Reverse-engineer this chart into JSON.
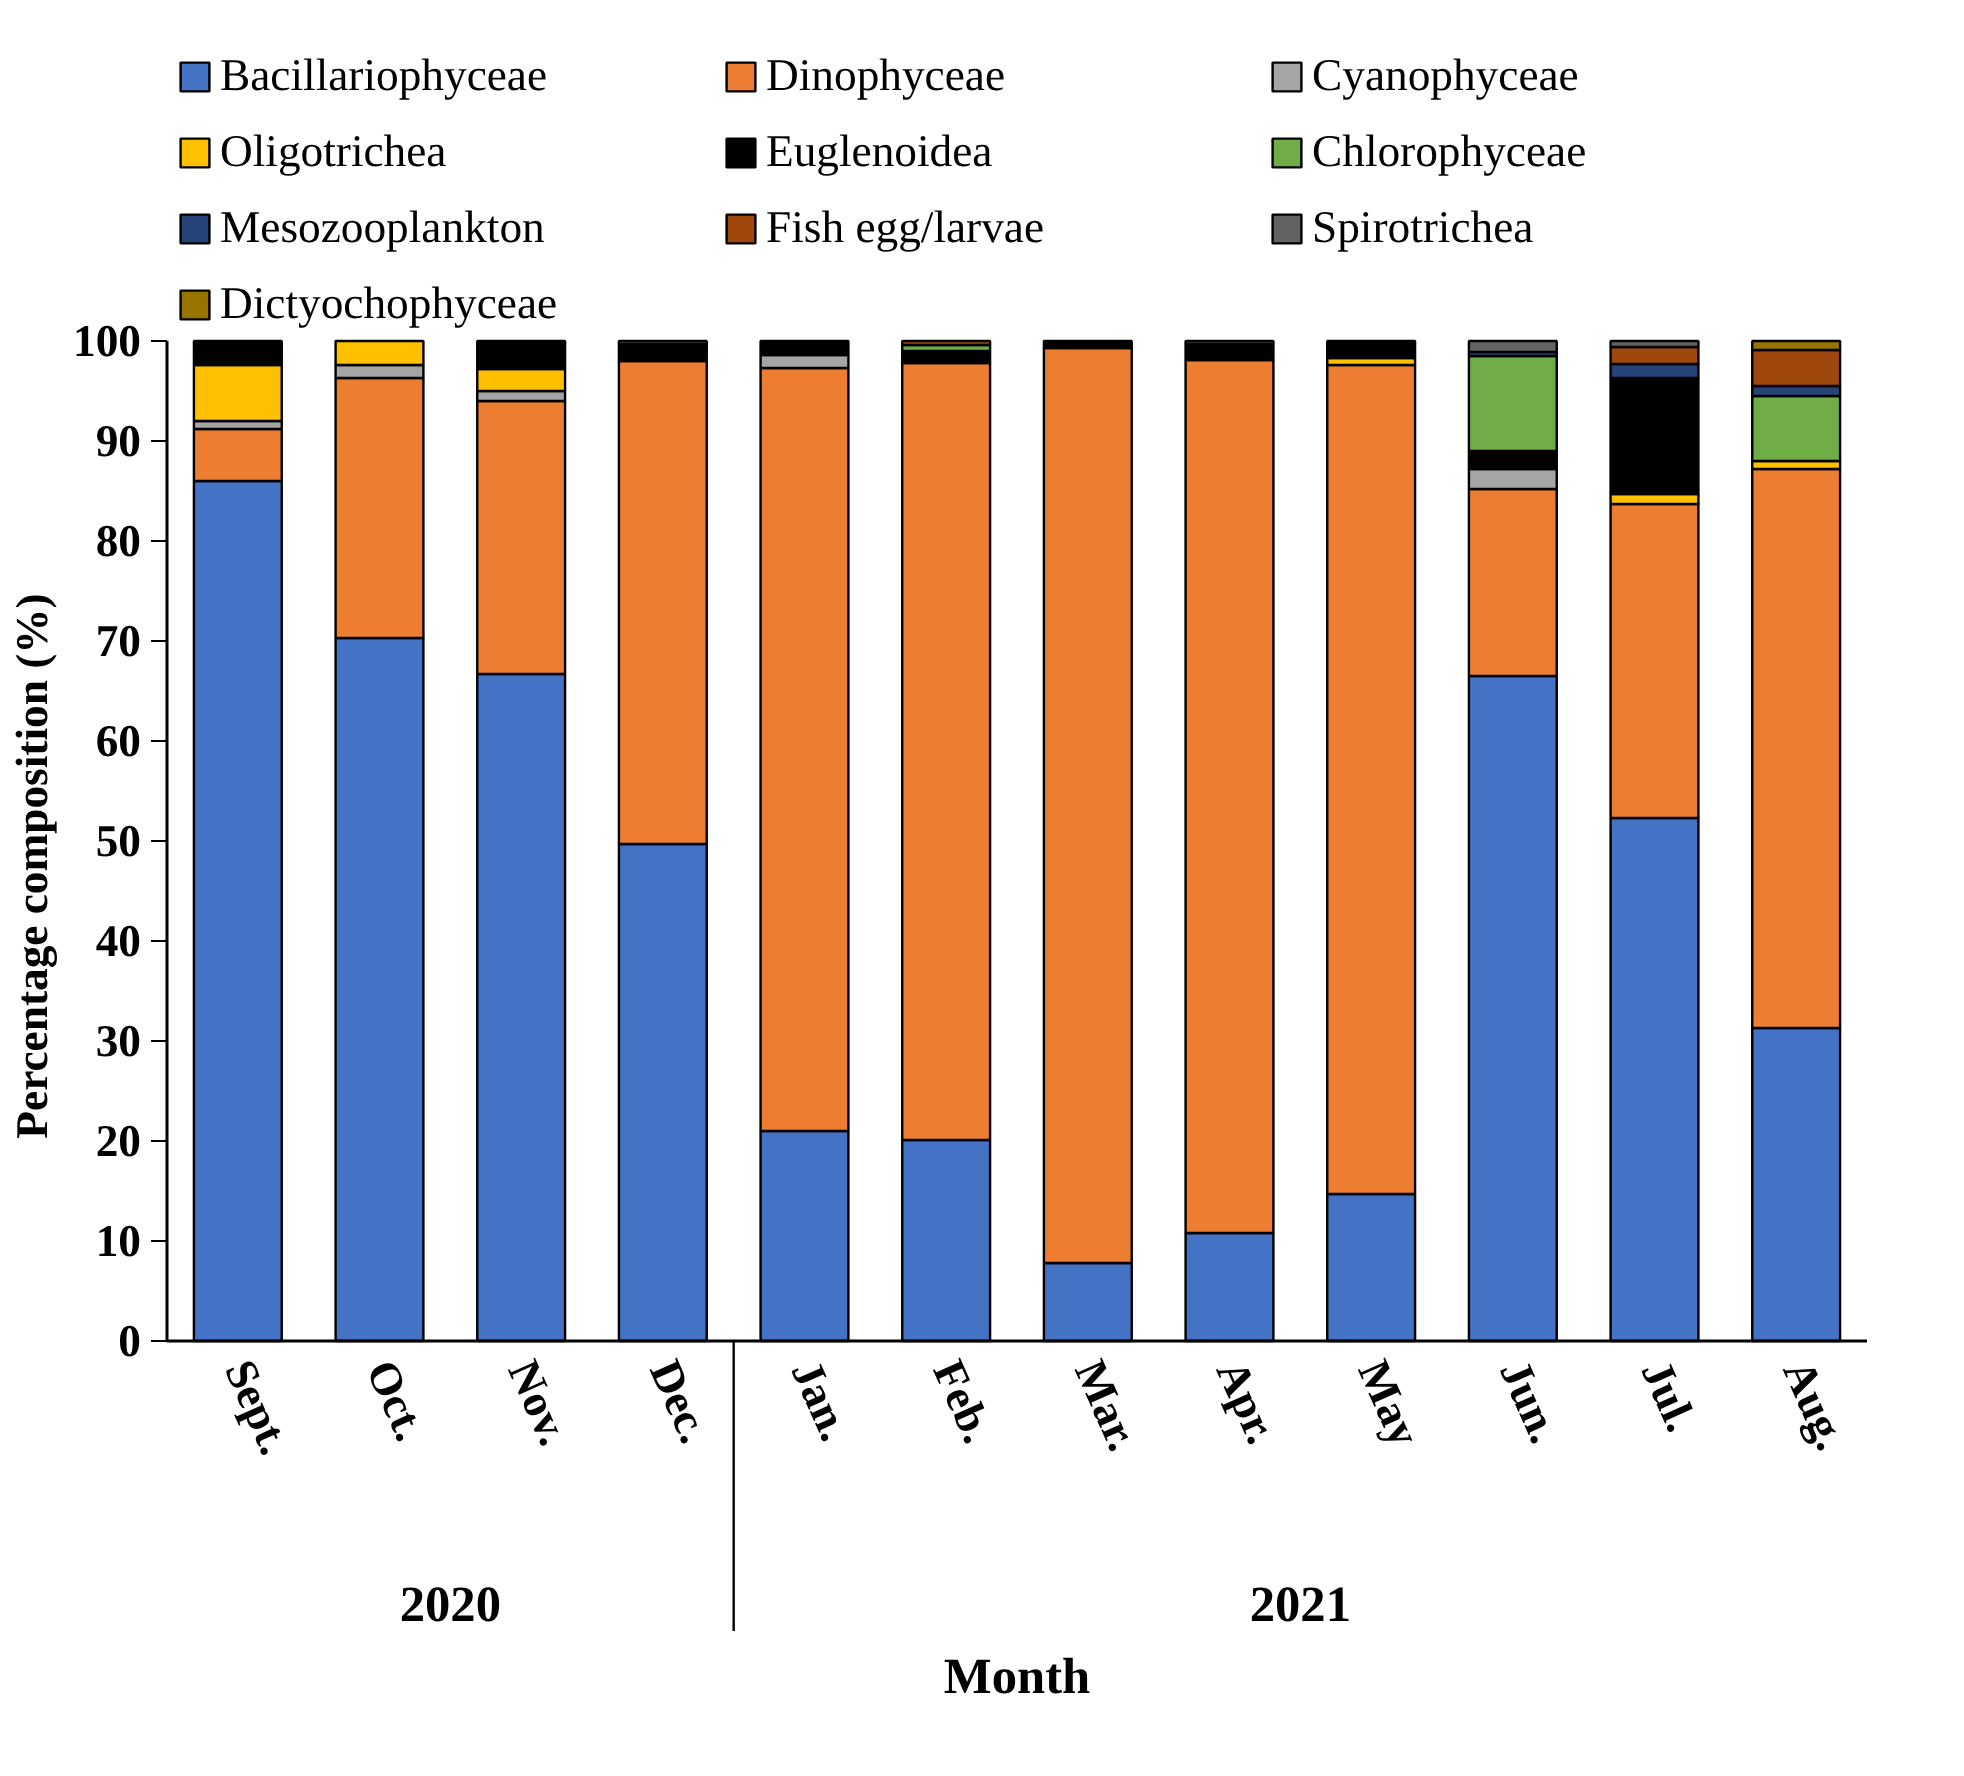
{
  "chart_data": {
    "type": "bar",
    "stacked": true,
    "xlabel": "Month",
    "ylabel": "Percentage composition (%)",
    "categories": [
      "Sept.",
      "Oct.",
      "Nov.",
      "Dec.",
      "Jan.",
      "Feb.",
      "Mar.",
      "Apr.",
      "May",
      "Jun.",
      "Jul.",
      "Aug."
    ],
    "ylim": [
      0,
      100
    ],
    "yticks": [
      0,
      10,
      20,
      30,
      40,
      50,
      60,
      70,
      80,
      90,
      100
    ],
    "grid": false,
    "legend": "top",
    "annotations": [
      "2020",
      "2021"
    ],
    "series": [
      {
        "name": "Bacillariophyceae",
        "color": "#4472c4",
        "values": [
          86,
          70.3,
          66.7,
          49.7,
          21,
          20.1,
          7.8,
          10.8,
          14.7,
          66.5,
          52.3,
          31.3
        ]
      },
      {
        "name": "Dinophyceae",
        "color": "#ed7d31",
        "values": [
          5.2,
          26,
          27.3,
          48.3,
          76.3,
          77.7,
          91.5,
          87.3,
          82.9,
          18.7,
          31.4,
          55.9
        ]
      },
      {
        "name": "Cyanophyceae",
        "color": "#a5a5a5",
        "values": [
          0.8,
          1.3,
          1,
          0,
          1.3,
          0,
          0,
          0,
          0,
          2,
          0,
          0
        ]
      },
      {
        "name": "Oligotrichea",
        "color": "#ffc000",
        "values": [
          5.6,
          2.4,
          2.2,
          0,
          0,
          0,
          0,
          0,
          0.7,
          0,
          1,
          0.8
        ]
      },
      {
        "name": "Euglenoidea",
        "color": "#000000",
        "values": [
          2.4,
          0,
          2.8,
          1.7,
          1.4,
          1.2,
          0.7,
          1.6,
          1.7,
          1.8,
          11.6,
          0
        ]
      },
      {
        "name": "Chlorophyceae",
        "color": "#70ad47",
        "values": [
          0,
          0,
          0,
          0,
          0,
          0.6,
          0,
          0,
          0,
          9.5,
          0,
          6.5
        ]
      },
      {
        "name": "Mesozooplankton",
        "color": "#264478",
        "values": [
          0,
          0,
          0,
          0,
          0,
          0,
          0,
          0,
          0,
          0.4,
          1.4,
          1
        ]
      },
      {
        "name": "Fish egg/larvae",
        "color": "#9e480e",
        "values": [
          0,
          0,
          0,
          0,
          0,
          0.4,
          0,
          0,
          0,
          0,
          1.7,
          3.6
        ]
      },
      {
        "name": "Spirotrichea",
        "color": "#636363",
        "values": [
          0,
          0,
          0,
          0.3,
          0,
          0,
          0,
          0.3,
          0,
          1.1,
          0.6,
          0
        ]
      },
      {
        "name": "Dictyochophyceae",
        "color": "#997300",
        "values": [
          0,
          0,
          0,
          0,
          0,
          0,
          0,
          0,
          0,
          0,
          0,
          0.9
        ]
      }
    ]
  }
}
